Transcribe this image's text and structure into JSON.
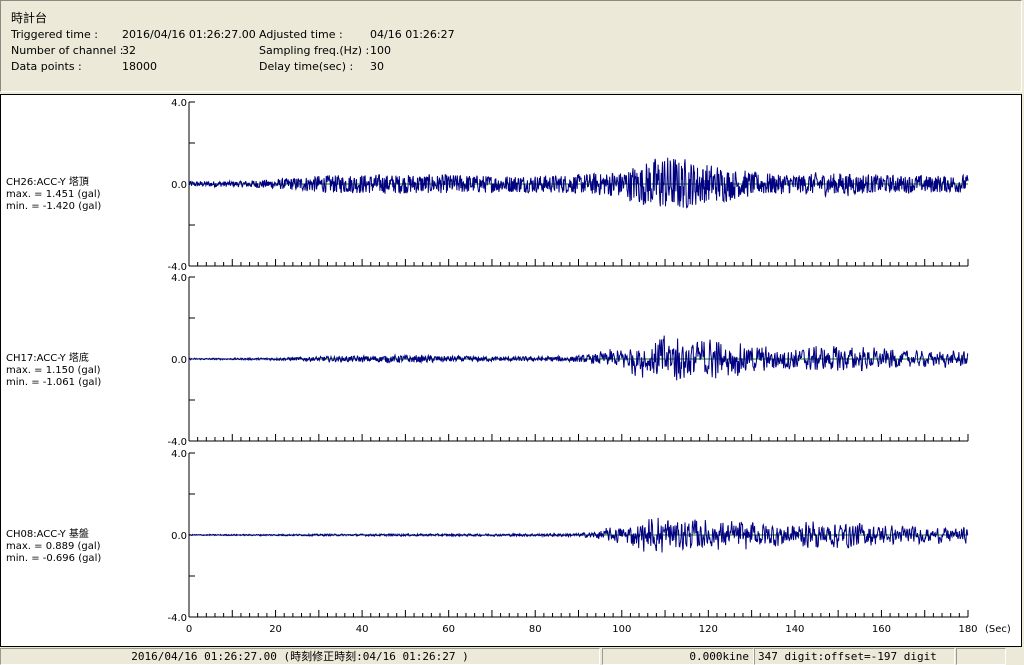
{
  "header": {
    "title": "時計台",
    "triggered_label": "Triggered time :",
    "triggered_value": "2016/04/16 01:26:27.00",
    "channels_label": "Number of channel :",
    "channels_value": "32",
    "points_label": "Data points :",
    "points_value": "18000",
    "adjusted_label": "Adjusted time :",
    "adjusted_value": "04/16 01:26:27",
    "freq_label": "Sampling freq.(Hz) :",
    "freq_value": "100",
    "delay_label": "Delay time(sec) :",
    "delay_value": "30"
  },
  "chart_data": {
    "type": "line",
    "xlim": [
      0,
      180
    ],
    "xticks": [
      "0",
      "20",
      "40",
      "60",
      "80",
      "100",
      "120",
      "140",
      "160",
      "180"
    ],
    "xunit": "(Sec)",
    "line_color": "#000080",
    "zero_line_color": "#008000",
    "panels": [
      {
        "label": "CH26:ACC-Y 塔頂",
        "max": "max. = 1.451 (gal)",
        "min": "min. = -1.420 (gal)",
        "ylim": [
          -4.0,
          4.0
        ],
        "yticks": [
          "4.0",
          "0.0",
          "-4.0"
        ],
        "envelope_per_10s": [
          0.15,
          0.15,
          0.25,
          0.45,
          0.5,
          0.5,
          0.5,
          0.45,
          0.45,
          0.5,
          0.7,
          1.45,
          1.0,
          0.6,
          0.5,
          0.6,
          0.45,
          0.45
        ]
      },
      {
        "label": "CH17:ACC-Y 塔底",
        "max": "max. = 1.150 (gal)",
        "min": "min. = -1.061 (gal)",
        "ylim": [
          -4.0,
          4.0
        ],
        "yticks": [
          "4.0",
          "0.0",
          "-4.0"
        ],
        "envelope_per_10s": [
          0.05,
          0.05,
          0.08,
          0.15,
          0.2,
          0.25,
          0.2,
          0.15,
          0.15,
          0.2,
          0.5,
          1.15,
          0.9,
          0.6,
          0.5,
          0.6,
          0.45,
          0.35
        ]
      },
      {
        "label": "CH08:ACC-Y 基盤",
        "max": "max. = 0.889 (gal)",
        "min": "min. = -0.696 (gal)",
        "ylim": [
          -4.0,
          4.0
        ],
        "yticks": [
          "4.0",
          "0.0",
          "-4.0"
        ],
        "envelope_per_10s": [
          0.04,
          0.04,
          0.05,
          0.06,
          0.06,
          0.07,
          0.07,
          0.07,
          0.08,
          0.1,
          0.4,
          0.89,
          0.6,
          0.6,
          0.55,
          0.65,
          0.45,
          0.35
        ]
      }
    ]
  },
  "status": {
    "time": "2016/04/16 01:26:27.00  (時刻修正時刻:04/16 01:26:27  )",
    "velocity": "0.000kine",
    "digit": "347 digit:offset=-197 digit",
    "extra": ""
  }
}
